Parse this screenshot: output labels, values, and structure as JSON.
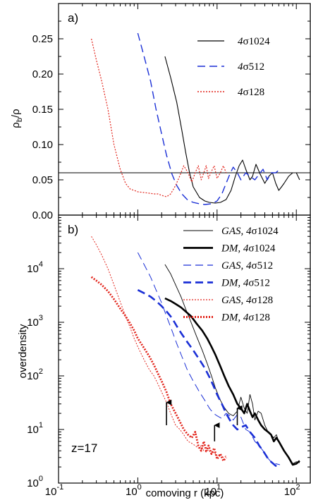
{
  "colors": {
    "black": "#000000",
    "blue": "#1a2fd6",
    "red": "#e2231a"
  },
  "chart_data": [
    {
      "type": "line",
      "panel_label": "a)",
      "ylabel": "ρb/ρ",
      "xscale": "log",
      "xlim": [
        0.1,
        150
      ],
      "ylim": [
        0.0,
        0.3
      ],
      "yticks": [
        0.0,
        0.05,
        0.1,
        0.15,
        0.2,
        0.25
      ],
      "ytick_labels": [
        "0.00",
        "0.05",
        "0.10",
        "0.15",
        "0.20",
        "0.25"
      ],
      "hline": 0.06,
      "legend_position": "top-right",
      "series": [
        {
          "name": "4σ1024",
          "prefix": "4",
          "sigma": "σ1024",
          "color": "#000000",
          "style": "solid",
          "width": 1.1,
          "x": [
            2.2,
            2.6,
            3.1,
            3.6,
            4.0,
            4.5,
            5.0,
            6.0,
            7.0,
            8.0,
            9.5,
            11,
            13,
            15,
            17,
            19,
            21,
            23,
            26,
            28,
            31,
            35,
            40,
            45,
            50,
            55,
            60,
            65,
            70,
            80,
            90,
            100,
            110
          ],
          "y": [
            0.225,
            0.195,
            0.16,
            0.12,
            0.09,
            0.06,
            0.04,
            0.025,
            0.02,
            0.018,
            0.017,
            0.018,
            0.022,
            0.035,
            0.055,
            0.07,
            0.078,
            0.065,
            0.05,
            0.055,
            0.072,
            0.058,
            0.045,
            0.055,
            0.06,
            0.045,
            0.035,
            0.04,
            0.045,
            0.055,
            0.06,
            0.06,
            0.05
          ]
        },
        {
          "name": "4σ512",
          "prefix": "4",
          "sigma": "σ512",
          "color": "#1a2fd6",
          "style": "dashed",
          "width": 1.4,
          "x": [
            1.0,
            1.2,
            1.45,
            1.7,
            2.0,
            2.3,
            2.7,
            3.1,
            3.6,
            4.2,
            5.0,
            6.0,
            7.0,
            8.5,
            10,
            11.5,
            13,
            14.5,
            16,
            18,
            20,
            23,
            26,
            30,
            34,
            38,
            43,
            48,
            55,
            62
          ],
          "y": [
            0.258,
            0.225,
            0.19,
            0.15,
            0.115,
            0.085,
            0.058,
            0.042,
            0.03,
            0.022,
            0.018,
            0.016,
            0.015,
            0.016,
            0.02,
            0.03,
            0.045,
            0.058,
            0.068,
            0.06,
            0.05,
            0.06,
            0.055,
            0.05,
            0.058,
            0.065,
            0.05,
            0.06,
            0.06,
            0.065
          ]
        },
        {
          "name": "4σ128",
          "prefix": "4",
          "sigma": "σ128",
          "color": "#e2231a",
          "style": "dotted",
          "width": 1.2,
          "x": [
            0.26,
            0.3,
            0.35,
            0.42,
            0.5,
            0.6,
            0.7,
            0.8,
            0.9,
            1.0,
            1.2,
            1.4,
            1.6,
            1.8,
            2.0,
            2.3,
            2.6,
            3.0,
            3.4,
            3.8,
            4.3,
            4.8,
            5.3,
            5.8,
            6.3,
            6.8,
            7.3,
            7.8,
            8.5,
            9.2,
            10,
            11,
            12,
            13
          ],
          "y": [
            0.25,
            0.22,
            0.19,
            0.15,
            0.1,
            0.065,
            0.045,
            0.037,
            0.035,
            0.033,
            0.032,
            0.031,
            0.03,
            0.03,
            0.028,
            0.026,
            0.03,
            0.042,
            0.056,
            0.07,
            0.06,
            0.047,
            0.06,
            0.07,
            0.05,
            0.06,
            0.07,
            0.052,
            0.062,
            0.07,
            0.052,
            0.06,
            0.07,
            0.06
          ]
        }
      ]
    },
    {
      "type": "line",
      "panel_label": "b)",
      "xlabel": "comoving r (kpc)",
      "ylabel": "overdensity",
      "xscale": "log",
      "yscale": "log",
      "xlim": [
        0.1,
        150
      ],
      "ylim": [
        1,
        100000
      ],
      "xticks": [
        0.1,
        1,
        10,
        100
      ],
      "xtick_labels": [
        [
          "10",
          "-1"
        ],
        [
          "10",
          "0"
        ],
        [
          "10",
          "1"
        ],
        [
          "10",
          "2"
        ]
      ],
      "yticks": [
        1,
        10,
        100,
        1000,
        10000
      ],
      "ytick_labels": [
        [
          "10",
          "0"
        ],
        [
          "10",
          "1"
        ],
        [
          "10",
          "2"
        ],
        [
          "10",
          "3"
        ],
        [
          "10",
          "4"
        ]
      ],
      "annotation": "z=17",
      "arrows": [
        {
          "x": 2.3,
          "y_tip": 32,
          "y_tail": 12
        },
        {
          "x": 9.3,
          "y_tip": 12,
          "y_tail": 6
        },
        {
          "x": 18,
          "y_tip": 25,
          "y_tail": 12
        }
      ],
      "legend_position": "top-right",
      "series": [
        {
          "name": "GAS, 4σ1024",
          "prefix": "GAS, 4",
          "sigma": "σ1024",
          "color": "#000000",
          "style": "solid",
          "width": 0.9,
          "x": [
            2.2,
            2.6,
            3.0,
            3.5,
            4.0,
            4.7,
            5.5,
            6.5,
            7.5,
            8.5,
            9.5,
            11,
            12.5,
            14,
            16,
            18,
            20,
            22,
            24,
            26,
            28,
            30,
            33,
            36,
            40,
            44,
            48,
            52,
            56,
            60,
            70,
            80,
            90,
            100,
            110
          ],
          "y": [
            12000,
            8000,
            5000,
            3000,
            1800,
            1000,
            550,
            300,
            170,
            100,
            60,
            35,
            25,
            20,
            18,
            22,
            40,
            25,
            20,
            45,
            30,
            15,
            22,
            20,
            12,
            9,
            8,
            7,
            8,
            6,
            4,
            3,
            2.3,
            2.5,
            2.4
          ]
        },
        {
          "name": "DM, 4σ1024",
          "prefix": "DM,  4",
          "sigma": "σ1024",
          "color": "#000000",
          "style": "solid",
          "width": 2.6,
          "x": [
            2.2,
            2.6,
            3.0,
            3.5,
            4.0,
            4.7,
            5.5,
            6.5,
            7.5,
            8.5,
            9.5,
            11,
            12.5,
            14,
            16,
            18,
            20,
            22,
            24,
            26,
            28,
            30,
            33,
            36,
            40,
            44,
            48,
            52,
            56,
            60,
            70,
            80,
            90,
            100,
            110
          ],
          "y": [
            2800,
            2500,
            2200,
            1900,
            1600,
            1300,
            950,
            700,
            500,
            350,
            250,
            150,
            95,
            65,
            45,
            30,
            25,
            20,
            30,
            22,
            17,
            20,
            15,
            12,
            10,
            9,
            8,
            6,
            7,
            6,
            4,
            3,
            2.2,
            2.3,
            2.6
          ]
        },
        {
          "name": "GAS, 4σ512",
          "prefix": "GAS, 4",
          "sigma": "σ512",
          "color": "#1a2fd6",
          "style": "dashed",
          "width": 1.0,
          "x": [
            1.0,
            1.2,
            1.45,
            1.7,
            2.0,
            2.3,
            2.7,
            3.1,
            3.6,
            4.2,
            5.0,
            6.0,
            7.0,
            8.0,
            9.0,
            10,
            11.5,
            13,
            14.5,
            16,
            18,
            20,
            23,
            26,
            30,
            34,
            38,
            43,
            48,
            55,
            62
          ],
          "y": [
            20000,
            12000,
            7000,
            4000,
            2300,
            1300,
            700,
            400,
            230,
            130,
            80,
            50,
            35,
            25,
            20,
            18,
            16,
            20,
            18,
            15,
            19,
            17,
            10,
            9,
            6,
            5,
            4,
            3,
            2.5,
            2.3,
            2.2
          ]
        },
        {
          "name": "DM, 4σ512",
          "prefix": "DM,  4",
          "sigma": "σ512",
          "color": "#1a2fd6",
          "style": "dashed",
          "width": 2.6,
          "x": [
            1.0,
            1.2,
            1.45,
            1.7,
            2.0,
            2.3,
            2.7,
            3.1,
            3.6,
            4.2,
            5.0,
            6.0,
            7.0,
            8.0,
            9.0,
            10,
            11.5,
            13,
            14.5,
            16,
            18,
            20,
            23,
            26,
            30,
            34,
            38,
            43,
            48,
            55,
            62
          ],
          "y": [
            4000,
            3500,
            3000,
            2500,
            2000,
            1600,
            1200,
            850,
            600,
            430,
            300,
            200,
            140,
            95,
            65,
            45,
            30,
            20,
            15,
            12,
            10,
            11,
            12,
            9,
            7,
            5,
            4,
            3,
            2.5,
            2.1,
            2.0
          ]
        },
        {
          "name": "GAS, 4σ128",
          "prefix": "GAS, 4",
          "sigma": "σ128",
          "color": "#e2231a",
          "style": "dotted",
          "width": 1.0,
          "x": [
            0.26,
            0.3,
            0.35,
            0.42,
            0.5,
            0.6,
            0.7,
            0.8,
            0.9,
            1.0,
            1.2,
            1.4,
            1.6,
            1.8,
            2.0,
            2.3,
            2.6,
            3.0,
            3.4,
            3.8,
            4.3,
            4.8,
            5.3,
            5.8,
            6.3,
            6.8,
            7.3,
            7.8,
            8.5,
            9.2,
            10,
            11,
            12,
            13
          ],
          "y": [
            40000,
            28000,
            18000,
            10000,
            5000,
            2400,
            1300,
            800,
            500,
            350,
            200,
            130,
            100,
            70,
            50,
            32,
            20,
            12,
            10,
            8,
            6,
            5.5,
            5,
            4.5,
            5,
            4,
            3.8,
            4.2,
            3.5,
            3.8,
            3.2,
            3.5,
            3.0,
            3.2
          ]
        },
        {
          "name": "DM, 4σ128",
          "prefix": "DM,  4",
          "sigma": "σ128",
          "color": "#e2231a",
          "style": "dotted",
          "width": 2.8,
          "x": [
            0.26,
            0.3,
            0.35,
            0.42,
            0.5,
            0.6,
            0.7,
            0.8,
            0.9,
            1.0,
            1.2,
            1.4,
            1.6,
            1.8,
            2.0,
            2.3,
            2.6,
            3.0,
            3.4,
            3.8,
            4.3,
            4.8,
            5.3,
            5.8,
            6.3,
            6.8,
            7.3,
            7.8,
            8.5,
            9.2,
            10,
            11,
            12,
            13
          ],
          "y": [
            7000,
            6000,
            5000,
            3800,
            2700,
            1800,
            1300,
            950,
            700,
            500,
            330,
            230,
            160,
            110,
            80,
            50,
            30,
            20,
            14,
            10,
            8,
            7,
            9,
            5,
            4,
            6,
            4,
            5,
            3.5,
            4.5,
            2.8,
            3.5,
            2.6,
            3.0
          ]
        }
      ]
    }
  ]
}
